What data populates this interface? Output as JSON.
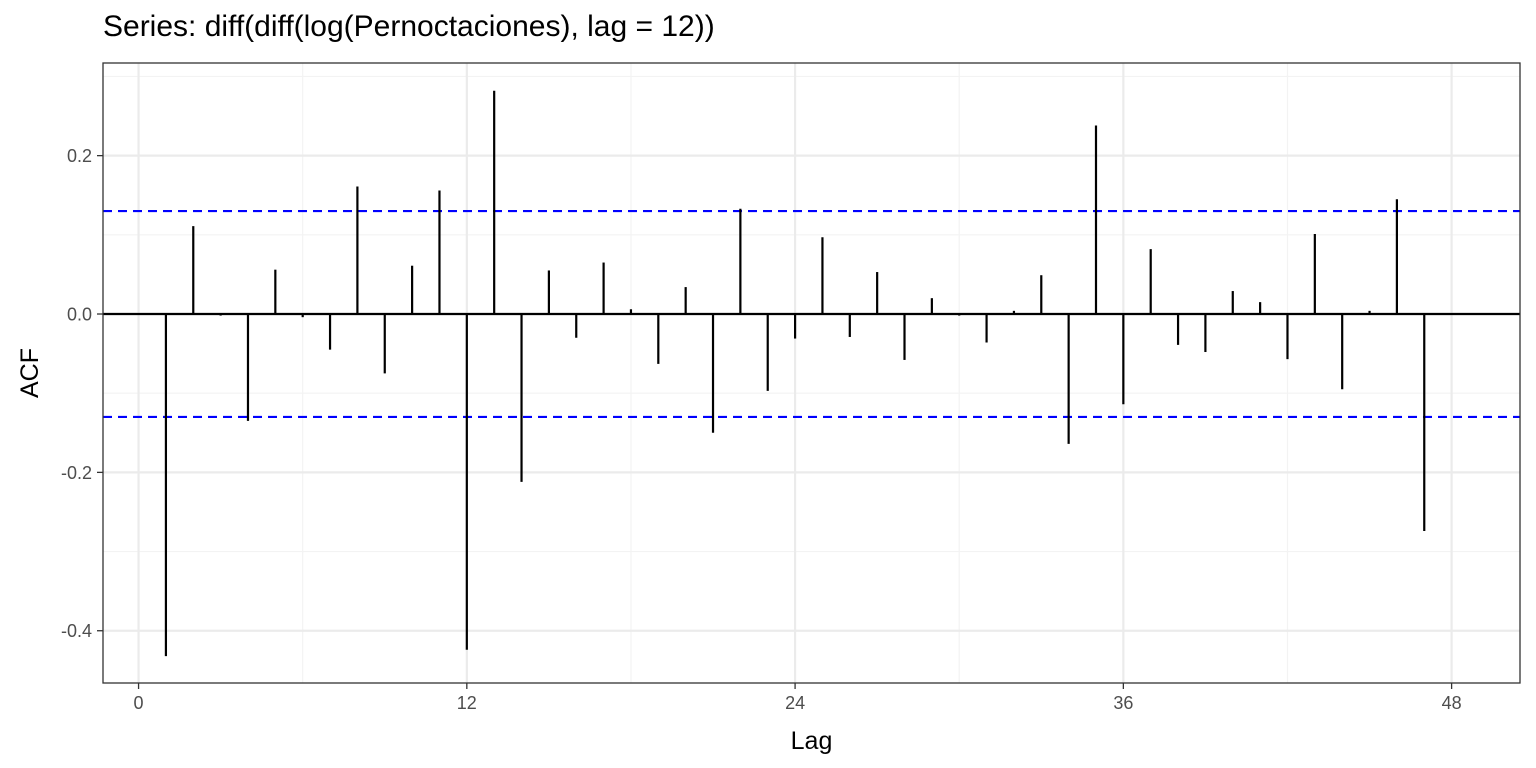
{
  "chart_data": {
    "type": "bar",
    "title": "Series: diff(diff(log(Pernoctaciones), lag = 12))",
    "xlabel": "Lag",
    "ylabel": "ACF",
    "xlim": [
      -1.3,
      50.5
    ],
    "ylim": [
      -0.466,
      0.317
    ],
    "x_ticks": [
      0,
      12,
      24,
      36,
      48
    ],
    "y_ticks": [
      -0.4,
      -0.2,
      0.0,
      0.2
    ],
    "y_tick_labels": [
      "-0.4",
      "-0.2",
      "0.0",
      "0.2"
    ],
    "confidence_bound": 0.13,
    "grid": true,
    "colors": {
      "bars": "#000000",
      "confidence": "#0000ff",
      "grid_major": "#ebebeb",
      "grid_minor": "#f3f3f3",
      "panel_border": "#333333"
    },
    "lags": [
      1,
      2,
      3,
      4,
      5,
      6,
      7,
      8,
      9,
      10,
      11,
      12,
      13,
      14,
      15,
      16,
      17,
      18,
      19,
      20,
      21,
      22,
      23,
      24,
      25,
      26,
      27,
      28,
      29,
      30,
      31,
      32,
      33,
      34,
      35,
      36,
      37,
      38,
      39,
      40,
      41,
      42,
      43,
      44,
      45,
      46,
      47,
      48
    ],
    "values": [
      -0.432,
      0.111,
      -0.002,
      -0.135,
      0.056,
      -0.004,
      -0.045,
      0.161,
      -0.075,
      0.061,
      0.156,
      -0.424,
      0.282,
      -0.212,
      0.055,
      -0.03,
      0.065,
      0.006,
      -0.063,
      0.034,
      -0.15,
      0.133,
      -0.097,
      -0.031,
      0.097,
      -0.029,
      0.053,
      -0.058,
      0.02,
      -0.002,
      -0.036,
      0.004,
      0.049,
      -0.164,
      0.238,
      -0.114,
      0.082,
      -0.039,
      -0.048,
      0.029,
      0.015,
      -0.057,
      0.101,
      -0.095,
      0.004,
      0.145,
      -0.274,
      0.0
    ]
  }
}
